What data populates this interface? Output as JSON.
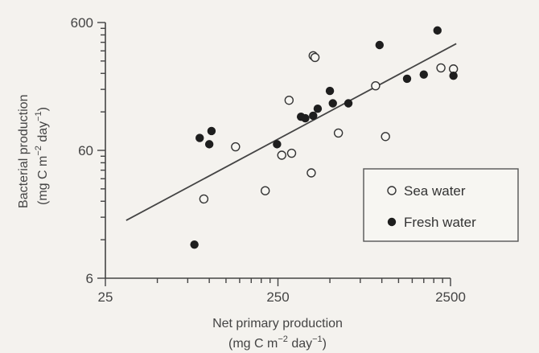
{
  "chart_data": {
    "type": "scatter",
    "xlabel": [
      "Net primary production",
      "(mg C m",
      "−2",
      " day",
      "−1",
      ")"
    ],
    "ylabel": [
      "Bacterial production",
      "(mg C m",
      "−2",
      " day",
      "−1",
      ")"
    ],
    "x_scale": "log",
    "y_scale": "log",
    "xlim": [
      25,
      2500
    ],
    "ylim": [
      6,
      600
    ],
    "x_ticks": [
      {
        "value": 25,
        "label": "25"
      },
      {
        "value": 250,
        "label": "250"
      },
      {
        "value": 2500,
        "label": "2500"
      }
    ],
    "y_ticks": [
      {
        "value": 6,
        "label": "6"
      },
      {
        "value": 60,
        "label": "60"
      },
      {
        "value": 600,
        "label": "600"
      }
    ],
    "legend": {
      "placement": "lower-right",
      "entries": [
        {
          "label": "Sea water",
          "marker": "open-circle"
        },
        {
          "label": "Fresh water",
          "marker": "filled-circle"
        }
      ]
    },
    "series": [
      {
        "name": "Sea water",
        "marker": "open-circle",
        "points": [
          [
            93,
            25
          ],
          [
            142,
            64
          ],
          [
            211,
            29
          ],
          [
            263,
            55
          ],
          [
            290,
            148
          ],
          [
            300,
            57
          ],
          [
            390,
            40
          ],
          [
            400,
            330
          ],
          [
            410,
            320
          ],
          [
            560,
            82
          ],
          [
            920,
            192
          ],
          [
            1050,
            77
          ],
          [
            2200,
            265
          ],
          [
            2600,
            260
          ]
        ]
      },
      {
        "name": "Fresh water",
        "marker": "filled-circle",
        "points": [
          [
            82,
            11
          ],
          [
            88,
            75
          ],
          [
            100,
            67
          ],
          [
            103,
            85
          ],
          [
            247,
            67
          ],
          [
            340,
            110
          ],
          [
            360,
            107
          ],
          [
            400,
            112
          ],
          [
            425,
            127
          ],
          [
            500,
            175
          ],
          [
            520,
            140
          ],
          [
            640,
            140
          ],
          [
            970,
            400
          ],
          [
            1400,
            218
          ],
          [
            1750,
            235
          ],
          [
            2100,
            520
          ],
          [
            2600,
            230
          ]
        ]
      }
    ],
    "fit_line": {
      "from": [
        33,
        17
      ],
      "to": [
        2700,
        410
      ]
    }
  },
  "colors": {
    "background": "#f4f2ee",
    "ink": "#3a3a3a",
    "marker_fill": "#1e1e1e"
  }
}
